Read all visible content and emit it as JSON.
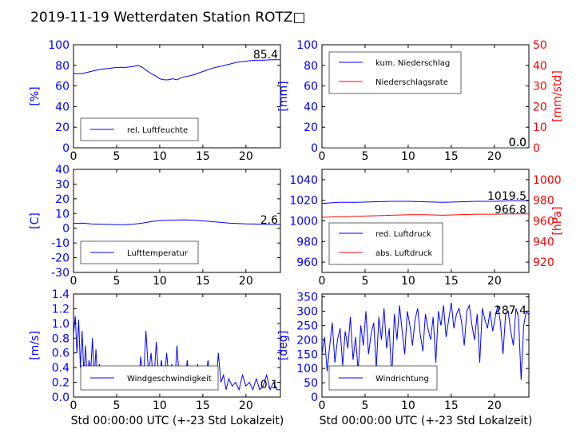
{
  "title": "2019-11-19 Wetterdaten Station ROTZ□",
  "xlabel": "Std 00:00:00 UTC (+-23 Std Lokalzeit)",
  "colors": {
    "blue": "#0000ff",
    "red": "#ff0000",
    "lightblue": "#8080ff",
    "axis": "#000000"
  },
  "chart_data": [
    {
      "id": "humidity",
      "type": "line",
      "ylabel": "[%]",
      "ylim": [
        0,
        100
      ],
      "yticks": [
        0,
        20,
        40,
        60,
        80,
        100
      ],
      "xlim": [
        0,
        24
      ],
      "xticks": [
        0,
        5,
        10,
        15,
        20
      ],
      "legend": [
        {
          "name": "rel. Luftfeuchte",
          "color": "#0000ff"
        }
      ],
      "value_label": "85.4",
      "series": [
        {
          "name": "rel. Luftfeuchte",
          "color": "#0000ff",
          "x": [
            0,
            1,
            2,
            3,
            4,
            5,
            6,
            7,
            7.5,
            8,
            8.5,
            9,
            9.5,
            10,
            10.5,
            11,
            11.5,
            12,
            12.5,
            13,
            13.5,
            14,
            15,
            16,
            17,
            18,
            19,
            20,
            21,
            22,
            23,
            24
          ],
          "y": [
            72,
            72,
            74,
            76,
            77,
            78,
            78,
            79,
            80,
            78,
            75,
            72,
            70,
            67,
            66,
            66,
            67,
            66,
            68,
            69,
            70,
            71,
            74,
            77,
            79,
            81,
            83,
            84,
            85,
            85,
            85.4,
            85.4
          ]
        }
      ]
    },
    {
      "id": "precip",
      "type": "line",
      "ylabel": "[mm]",
      "ylim": [
        0,
        100
      ],
      "yticks": [
        0,
        20,
        40,
        60,
        80,
        100
      ],
      "y2label": "[mm/std]",
      "y2lim": [
        0,
        50
      ],
      "y2ticks": [
        0,
        10,
        20,
        30,
        40,
        50
      ],
      "xlim": [
        0,
        24
      ],
      "xticks": [
        0,
        5,
        10,
        15,
        20
      ],
      "legend": [
        {
          "name": "kum. Niederschlag",
          "color": "#0000ff"
        },
        {
          "name": "Niederschlagsrate",
          "color": "#ff0000"
        }
      ],
      "value_label": "0.0",
      "value_label2": "0.0",
      "series": [
        {
          "name": "kum. Niederschlag",
          "color": "#0000ff",
          "axis": "left",
          "x": [
            0,
            24
          ],
          "y": [
            0,
            0
          ]
        },
        {
          "name": "Niederschlagsrate",
          "color": "#ff0000",
          "axis": "right",
          "x": [
            0,
            24
          ],
          "y": [
            0,
            0
          ]
        }
      ]
    },
    {
      "id": "temperature",
      "type": "line",
      "ylabel": "[C]",
      "ylim": [
        -30,
        40
      ],
      "yticks": [
        -30,
        -20,
        -10,
        0,
        10,
        20,
        30,
        40
      ],
      "xlim": [
        0,
        24
      ],
      "xticks": [
        0,
        5,
        10,
        15,
        20
      ],
      "legend": [
        {
          "name": "Lufttemperatur",
          "color": "#0000ff"
        }
      ],
      "value_label": "2.6",
      "series": [
        {
          "name": "Lufttemperatur",
          "color": "#0000ff",
          "x": [
            0,
            1,
            2,
            3,
            4,
            5,
            6,
            7,
            8,
            9,
            10,
            11,
            12,
            13,
            14,
            15,
            16,
            17,
            18,
            19,
            20,
            21,
            22,
            23,
            24
          ],
          "y": [
            3.2,
            3.5,
            3.0,
            2.8,
            2.6,
            2.4,
            2.5,
            2.8,
            3.5,
            4.5,
            5.2,
            5.5,
            5.6,
            5.7,
            5.5,
            5.0,
            4.5,
            4.0,
            3.5,
            3.2,
            3.0,
            2.9,
            2.7,
            2.6,
            2.6
          ]
        }
      ]
    },
    {
      "id": "pressure",
      "type": "line",
      "ylabel": "",
      "ylim": [
        950,
        1050
      ],
      "yticks": [
        960,
        980,
        1000,
        1020,
        1040
      ],
      "y2label": "[hPa]",
      "y2lim": [
        910,
        1010
      ],
      "y2ticks": [
        920,
        940,
        960,
        980,
        1000
      ],
      "xlim": [
        0,
        24
      ],
      "xticks": [
        0,
        5,
        10,
        15,
        20
      ],
      "legend": [
        {
          "name": "red. Luftdruck",
          "color": "#0000ff"
        },
        {
          "name": "abs. Luftdruck",
          "color": "#ff0000"
        }
      ],
      "value_label": "1019.5",
      "value_label2": "966.8",
      "series": [
        {
          "name": "red. Luftdruck",
          "color": "#0000ff",
          "axis": "left",
          "x": [
            0,
            2,
            4,
            6,
            8,
            10,
            12,
            14,
            16,
            18,
            20,
            22,
            24
          ],
          "y": [
            1017,
            1018,
            1018,
            1018.5,
            1019,
            1019,
            1018.5,
            1018,
            1018.5,
            1019,
            1019,
            1019.5,
            1019.5
          ]
        },
        {
          "name": "abs. Luftdruck",
          "color": "#ff0000",
          "axis": "right",
          "x": [
            0,
            2,
            4,
            6,
            8,
            10,
            12,
            14,
            16,
            18,
            20,
            22,
            24
          ],
          "y": [
            963.5,
            964,
            964.5,
            965,
            965.5,
            966,
            966,
            965.5,
            966,
            966.5,
            966.5,
            966.8,
            966.8
          ]
        }
      ]
    },
    {
      "id": "wind",
      "type": "line",
      "ylabel": "[m/s]",
      "ylim": [
        0,
        1.4
      ],
      "yticks": [
        0.0,
        0.2,
        0.4,
        0.6,
        0.8,
        1.0,
        1.2,
        1.4
      ],
      "xlim": [
        0,
        24
      ],
      "xticks": [
        0,
        5,
        10,
        15,
        20
      ],
      "legend": [
        {
          "name": "Windgeschwindigkeit",
          "color": "#0000ff"
        }
      ],
      "value_label": "0.1",
      "series": [
        {
          "name": "Windgeschwindigkeit",
          "color": "#0000ff",
          "x": [
            0,
            0.2,
            0.4,
            0.6,
            0.8,
            1.0,
            1.2,
            1.4,
            1.6,
            1.8,
            2.0,
            2.2,
            2.4,
            2.6,
            2.8,
            3.0,
            3.3,
            3.6,
            3.9,
            4.2,
            4.5,
            4.8,
            5.1,
            5.4,
            5.7,
            6.0,
            6.3,
            6.6,
            6.9,
            7.2,
            7.5,
            7.8,
            8.1,
            8.4,
            8.7,
            9.0,
            9.3,
            9.6,
            9.9,
            10.2,
            10.5,
            10.8,
            11.1,
            11.4,
            11.7,
            12.0,
            12.3,
            12.6,
            12.9,
            13.2,
            13.5,
            13.8,
            14.1,
            14.4,
            14.7,
            15.0,
            15.3,
            15.6,
            15.9,
            16.2,
            16.5,
            16.8,
            17.1,
            17.4,
            17.7,
            18.0,
            18.4,
            18.8,
            19.2,
            19.6,
            20.0,
            20.4,
            20.8,
            21.2,
            21.6,
            22.0,
            22.4,
            22.8,
            23.2,
            23.6,
            24.0
          ],
          "y": [
            0.85,
            1.1,
            0.6,
            1.05,
            0.4,
            0.9,
            0.3,
            0.7,
            0.2,
            0.5,
            0.35,
            0.8,
            0.25,
            0.65,
            0.2,
            0.45,
            0.15,
            0.4,
            0.2,
            0.35,
            0.1,
            0.3,
            0.15,
            0.25,
            0.4,
            0.2,
            0.1,
            0.35,
            0.15,
            0.3,
            0.1,
            0.55,
            0.2,
            0.9,
            0.3,
            0.6,
            0.15,
            0.75,
            0.25,
            0.5,
            0.15,
            0.6,
            0.2,
            0.45,
            0.1,
            0.7,
            0.2,
            0.4,
            0.15,
            0.5,
            0.1,
            0.35,
            0.2,
            0.45,
            0.1,
            0.3,
            0.2,
            0.5,
            0.15,
            0.35,
            0.1,
            0.6,
            0.2,
            0.3,
            0.1,
            0.25,
            0.15,
            0.2,
            0.1,
            0.3,
            0.15,
            0.2,
            0.1,
            0.25,
            0.1,
            0.15,
            0.3,
            0.1,
            0.2,
            0.1,
            0.1
          ]
        }
      ]
    },
    {
      "id": "winddir",
      "type": "line",
      "ylabel": "[deg]",
      "ylim": [
        0,
        360
      ],
      "yticks": [
        0,
        50,
        100,
        150,
        200,
        250,
        300,
        350
      ],
      "xlim": [
        0,
        24
      ],
      "xticks": [
        0,
        5,
        10,
        15,
        20
      ],
      "legend": [
        {
          "name": "Windrichtung",
          "color": "#0000ff"
        }
      ],
      "value_label": "287.4",
      "series": [
        {
          "name": "Windrichtung",
          "color": "#0000ff",
          "x": [
            0,
            0.3,
            0.6,
            0.9,
            1.2,
            1.5,
            1.8,
            2.1,
            2.4,
            2.7,
            3.0,
            3.3,
            3.6,
            3.9,
            4.2,
            4.5,
            4.8,
            5.1,
            5.4,
            5.7,
            6.0,
            6.3,
            6.6,
            6.9,
            7.2,
            7.5,
            7.8,
            8.1,
            8.4,
            8.7,
            9.0,
            9.3,
            9.6,
            9.9,
            10.2,
            10.5,
            10.8,
            11.1,
            11.4,
            11.7,
            12.0,
            12.3,
            12.6,
            12.9,
            13.2,
            13.5,
            13.8,
            14.1,
            14.4,
            14.7,
            15.0,
            15.3,
            15.6,
            15.9,
            16.2,
            16.5,
            16.8,
            17.1,
            17.4,
            17.7,
            18.0,
            18.3,
            18.6,
            18.9,
            19.2,
            19.5,
            19.8,
            20.1,
            20.4,
            20.7,
            21.0,
            21.3,
            21.6,
            21.9,
            22.2,
            22.5,
            22.8,
            23.1,
            23.4,
            23.7,
            24.0
          ],
          "y": [
            150,
            210,
            90,
            180,
            260,
            120,
            200,
            240,
            110,
            230,
            170,
            280,
            130,
            210,
            90,
            250,
            180,
            300,
            150,
            220,
            260,
            100,
            280,
            200,
            310,
            170,
            240,
            60,
            290,
            200,
            320,
            230,
            150,
            300,
            250,
            180,
            270,
            310,
            220,
            160,
            290,
            240,
            200,
            280,
            120,
            300,
            250,
            320,
            210,
            270,
            330,
            240,
            290,
            310,
            260,
            180,
            300,
            320,
            250,
            200,
            290,
            120,
            310,
            270,
            240,
            300,
            230,
            280,
            320,
            260,
            150,
            290,
            300,
            230,
            180,
            310,
            280,
            60,
            250,
            300,
            287.4
          ]
        }
      ]
    }
  ]
}
